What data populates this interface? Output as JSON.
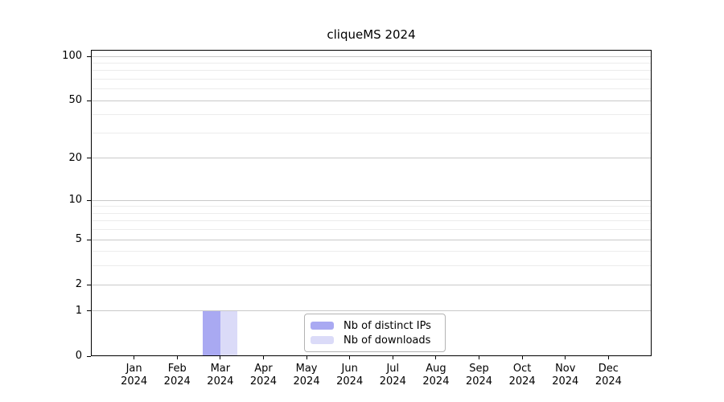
{
  "chart_data": {
    "type": "bar",
    "title": "cliqueMS 2024",
    "x_labels": [
      {
        "month": "Jan",
        "year": "2024"
      },
      {
        "month": "Feb",
        "year": "2024"
      },
      {
        "month": "Mar",
        "year": "2024"
      },
      {
        "month": "Apr",
        "year": "2024"
      },
      {
        "month": "May",
        "year": "2024"
      },
      {
        "month": "Jun",
        "year": "2024"
      },
      {
        "month": "Jul",
        "year": "2024"
      },
      {
        "month": "Aug",
        "year": "2024"
      },
      {
        "month": "Sep",
        "year": "2024"
      },
      {
        "month": "Oct",
        "year": "2024"
      },
      {
        "month": "Nov",
        "year": "2024"
      },
      {
        "month": "Dec",
        "year": "2024"
      }
    ],
    "series": [
      {
        "name": "Nb of distinct IPs",
        "color": "#a9a9f2",
        "values": [
          0,
          0,
          1,
          0,
          0,
          0,
          0,
          0,
          0,
          0,
          0,
          0
        ]
      },
      {
        "name": "Nb of downloads",
        "color": "#dbdbf8",
        "values": [
          0,
          0,
          1,
          0,
          0,
          0,
          0,
          0,
          0,
          0,
          0,
          0
        ]
      }
    ],
    "y_scale": "log1p",
    "y_major_ticks": [
      0,
      1,
      2,
      5,
      10,
      20,
      50,
      100
    ],
    "y_minor_gridlines": [
      3,
      4,
      6,
      7,
      8,
      9,
      30,
      40,
      60,
      70,
      80,
      90
    ],
    "ylim": [
      0,
      110
    ],
    "grid": true,
    "legend_position": "bottom-center",
    "colors": {
      "grid_major": "#c9c9c9",
      "grid_minor": "#ececec",
      "axis": "#000000",
      "legend_border": "#b3b3b3",
      "background": "#ffffff"
    }
  }
}
